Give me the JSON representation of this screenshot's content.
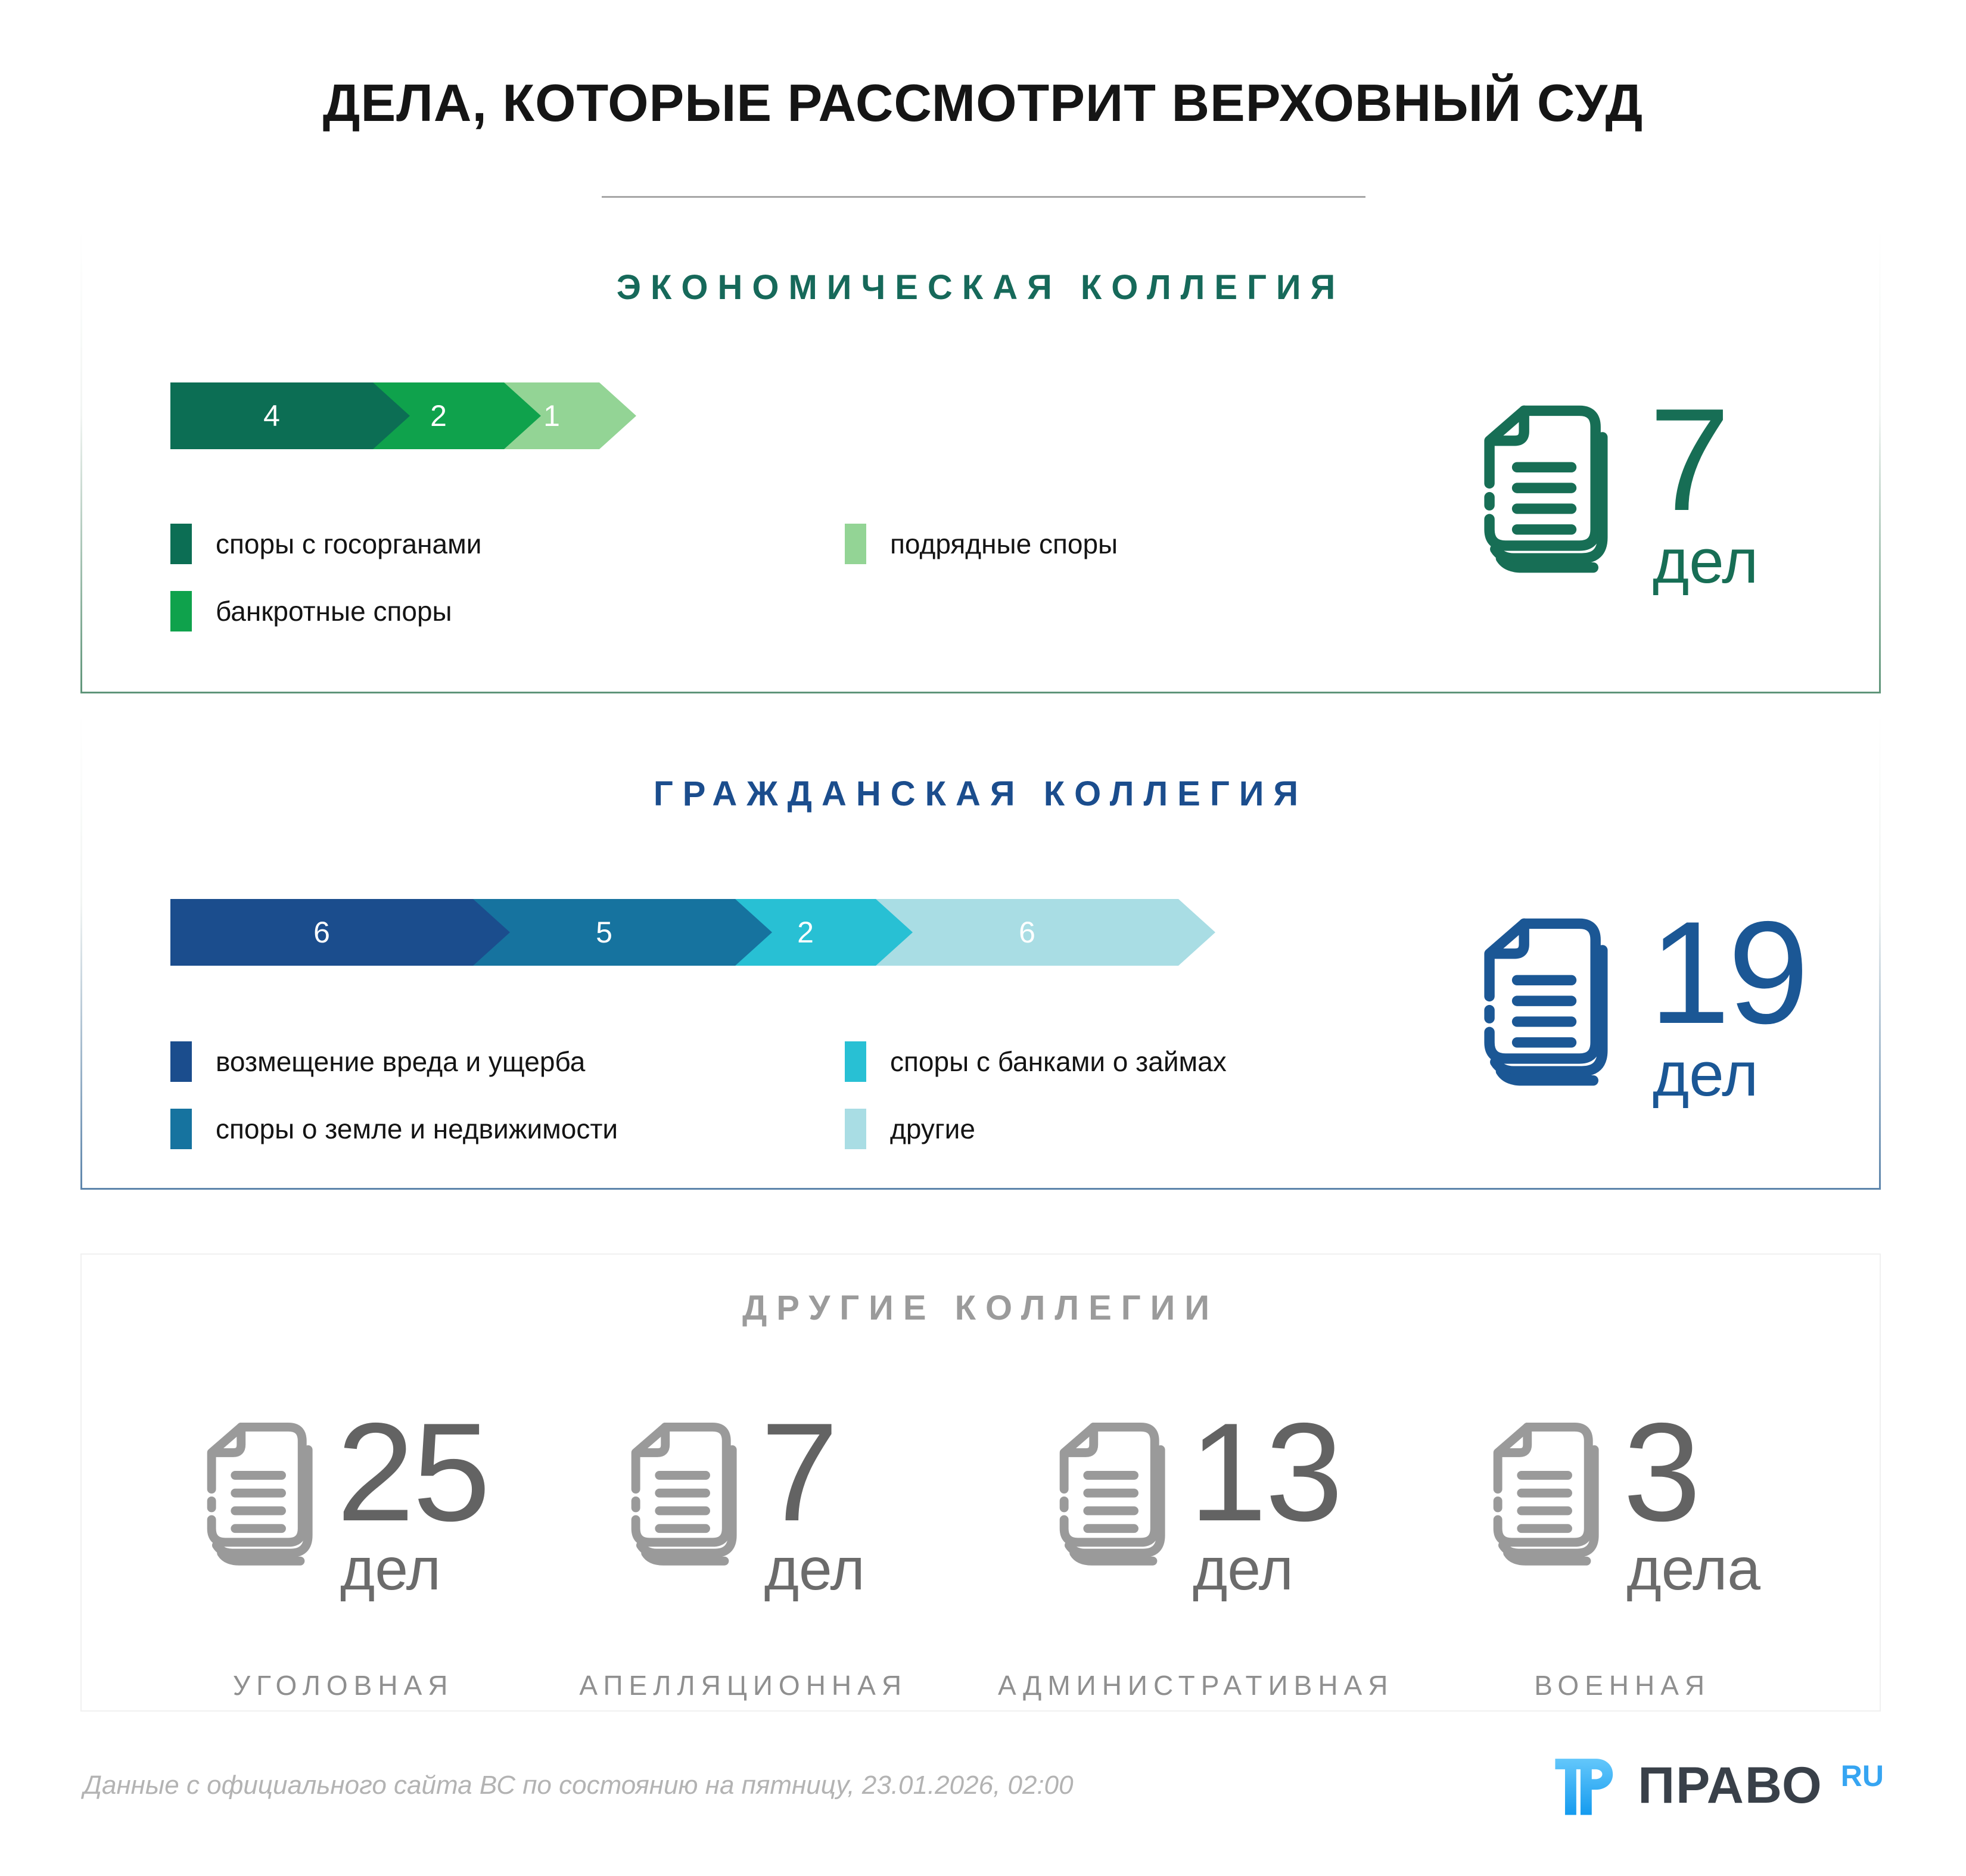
{
  "page": {
    "title": "ДЕЛА, КОТОРЫЕ РАССМОТРИТ ВЕРХОВНЫЙ СУД",
    "footer_note": "Данные с официального сайта ВС по состоянию на пятницу, 23.01.2026, 02:00",
    "logo": {
      "name": "ПРАВО",
      "suffix": "RU",
      "brand_blue": "#36a5f2",
      "brand_dark": "#394049"
    }
  },
  "sections": {
    "economic": {
      "title": "ЭКОНОМИЧЕСКАЯ КОЛЛЕГИЯ",
      "accent": "#16695a",
      "total_color": "#176e55",
      "border_to": "#5f9579",
      "total_number": "7",
      "total_unit": "дел",
      "segments": [
        {
          "value": 4,
          "color": "#0c6e54",
          "label": "споры с госорганами"
        },
        {
          "value": 2,
          "color": "#0fa24c",
          "label": "банкротные споры"
        },
        {
          "value": 1,
          "color": "#93d495",
          "label": "подрядные споры"
        }
      ]
    },
    "civil": {
      "title": "ГРАЖДАНСКАЯ КОЛЛЕГИЯ",
      "accent": "#1b4d8d",
      "total_color": "#1b5795",
      "border_to": "#5d85ab",
      "total_number": "19",
      "total_unit": "дел",
      "segments": [
        {
          "value": 6,
          "color": "#1b4d8d",
          "label": "возмещение вреда и ущерба"
        },
        {
          "value": 5,
          "color": "#16739f",
          "label": "споры о земле и недвижимости"
        },
        {
          "value": 2,
          "color": "#28c0d4",
          "label": "споры с банками о займах"
        },
        {
          "value": 6,
          "color": "#a9dde4",
          "label": "другие"
        }
      ]
    },
    "others": {
      "title": "ДРУГИЕ КОЛЛЕГИИ",
      "items": [
        {
          "number": "25",
          "unit": "дел",
          "label": "УГОЛОВНАЯ"
        },
        {
          "number": "7",
          "unit": "дел",
          "label": "АПЕЛЛЯЦИОННАЯ"
        },
        {
          "number": "13",
          "unit": "дел",
          "label": "АДМИНИСТРАТИВНАЯ"
        },
        {
          "number": "3",
          "unit": "дела",
          "label": "ВОЕННАЯ"
        }
      ]
    }
  },
  "chart_data": [
    {
      "type": "bar",
      "orientation": "horizontal-arrow",
      "title": "ЭКОНОМИЧЕСКАЯ КОЛЛЕГИЯ",
      "categories": [
        "споры с госорганами",
        "банкротные споры",
        "подрядные споры"
      ],
      "values": [
        4,
        2,
        1
      ],
      "colors": [
        "#0c6e54",
        "#0fa24c",
        "#93d495"
      ],
      "total": 7,
      "total_label": "7 дел",
      "legend_position": "below"
    },
    {
      "type": "bar",
      "orientation": "horizontal-arrow",
      "title": "ГРАЖДАНСКАЯ КОЛЛЕГИЯ",
      "categories": [
        "возмещение вреда и ущерба",
        "споры о земле и недвижимости",
        "споры с банками о займах",
        "другие"
      ],
      "values": [
        6,
        5,
        2,
        6
      ],
      "colors": [
        "#1b4d8d",
        "#16739f",
        "#28c0d4",
        "#a9dde4"
      ],
      "total": 19,
      "total_label": "19 дел",
      "legend_position": "below"
    },
    {
      "type": "table",
      "title": "ДРУГИЕ КОЛЛЕГИИ",
      "categories": [
        "УГОЛОВНАЯ",
        "АПЕЛЛЯЦИОННАЯ",
        "АДМИНИСТРАТИВНАЯ",
        "ВОЕННАЯ"
      ],
      "values": [
        25,
        7,
        13,
        3
      ],
      "units": [
        "дел",
        "дел",
        "дел",
        "дела"
      ]
    }
  ]
}
